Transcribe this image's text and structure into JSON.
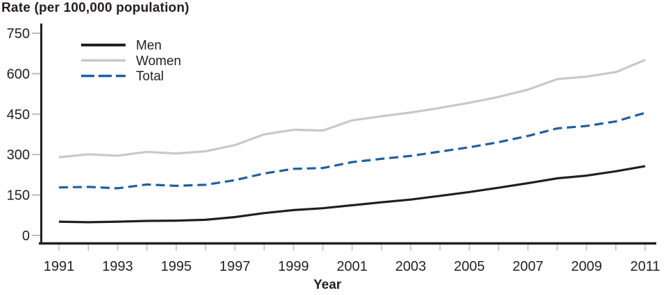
{
  "title": "Rate (per 100,000 population)",
  "chart_data": {
    "type": "line",
    "title": "Rate (per 100,000 population)",
    "xlabel": "Year",
    "ylabel": "Rate (per 100,000 population)",
    "x": [
      1991,
      1992,
      1993,
      1994,
      1995,
      1996,
      1997,
      1998,
      1999,
      2000,
      2001,
      2002,
      2003,
      2004,
      2005,
      2006,
      2007,
      2008,
      2009,
      2010,
      2011
    ],
    "x_labeled_ticks": [
      "1991",
      "1993",
      "1995",
      "1997",
      "1999",
      "2001",
      "2003",
      "2005",
      "2007",
      "2009",
      "2011"
    ],
    "yticks": [
      "0",
      "150",
      "300",
      "450",
      "600",
      "750"
    ],
    "ylim": [
      0,
      750
    ],
    "grid": false,
    "legend_position": "top-left-inside",
    "series": [
      {
        "name": "Men",
        "style": "solid",
        "color": "#231f20",
        "values": [
          51,
          49,
          51,
          54,
          55,
          58,
          68,
          83,
          94,
          101,
          112,
          123,
          133,
          147,
          161,
          177,
          194,
          212,
          222,
          238,
          257
        ]
      },
      {
        "name": "Women",
        "style": "solid",
        "color": "#c7c8ca",
        "values": [
          290,
          301,
          296,
          310,
          304,
          312,
          335,
          375,
          392,
          389,
          427,
          442,
          456,
          473,
          492,
          514,
          541,
          580,
          589,
          606,
          651
        ]
      },
      {
        "name": "Total",
        "style": "dashed",
        "color": "#1d5fa3",
        "values": [
          178,
          180,
          175,
          189,
          184,
          188,
          205,
          230,
          247,
          250,
          272,
          284,
          295,
          311,
          327,
          346,
          369,
          397,
          406,
          423,
          455
        ]
      }
    ]
  },
  "colors": {
    "axis": "#231f20",
    "tick": "#b9bcbe",
    "text": "#231f20",
    "background": "#ffffff"
  }
}
